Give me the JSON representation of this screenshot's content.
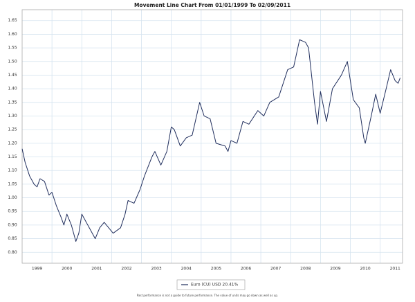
{
  "chart_data": {
    "type": "line",
    "title": "Movement Line Chart From 01/01/1999 To 02/09/2011",
    "footnote": "Past performance is not a guide to future performance. The value of units may go down as well as up.",
    "x": [
      1999.0,
      1999.1,
      1999.25,
      1999.4,
      1999.5,
      1999.6,
      1999.75,
      1999.9,
      2000.0,
      2000.15,
      2000.3,
      2000.4,
      2000.5,
      2000.65,
      2000.8,
      2000.9,
      2001.0,
      2001.1,
      2001.3,
      2001.45,
      2001.6,
      2001.75,
      2001.9,
      2002.05,
      2002.3,
      2002.45,
      2002.55,
      2002.75,
      2002.95,
      2003.1,
      2003.35,
      2003.45,
      2003.65,
      2003.85,
      2004.0,
      2004.1,
      2004.3,
      2004.5,
      2004.7,
      2004.95,
      2005.1,
      2005.3,
      2005.5,
      2005.8,
      2005.9,
      2006.0,
      2006.2,
      2006.4,
      2006.6,
      2006.9,
      2007.1,
      2007.3,
      2007.6,
      2007.9,
      2008.1,
      2008.3,
      2008.5,
      2008.6,
      2008.8,
      2008.9,
      2009.0,
      2009.2,
      2009.4,
      2009.7,
      2009.9,
      2010.1,
      2010.3,
      2010.45,
      2010.5,
      2010.7,
      2010.85,
      2011.0,
      2011.2,
      2011.35,
      2011.5,
      2011.6,
      2011.67
    ],
    "series": [
      {
        "name": "Euro (CU) USD 20.41%",
        "color": "#1f2d5c",
        "values": [
          1.18,
          1.13,
          1.08,
          1.05,
          1.04,
          1.07,
          1.06,
          1.01,
          1.02,
          0.97,
          0.93,
          0.9,
          0.94,
          0.9,
          0.84,
          0.87,
          0.94,
          0.92,
          0.88,
          0.85,
          0.89,
          0.91,
          0.89,
          0.87,
          0.89,
          0.94,
          0.99,
          0.98,
          1.03,
          1.08,
          1.15,
          1.17,
          1.12,
          1.17,
          1.26,
          1.25,
          1.19,
          1.22,
          1.23,
          1.35,
          1.3,
          1.29,
          1.2,
          1.19,
          1.17,
          1.21,
          1.2,
          1.28,
          1.27,
          1.32,
          1.3,
          1.35,
          1.37,
          1.47,
          1.48,
          1.58,
          1.57,
          1.55,
          1.35,
          1.27,
          1.39,
          1.28,
          1.4,
          1.45,
          1.5,
          1.36,
          1.33,
          1.22,
          1.2,
          1.3,
          1.38,
          1.31,
          1.4,
          1.47,
          1.43,
          1.42,
          1.44
        ]
      }
    ],
    "xlim": [
      1999.0,
      2011.75
    ],
    "xticks": [
      1999,
      2000,
      2001,
      2002,
      2003,
      2004,
      2005,
      2006,
      2007,
      2008,
      2009,
      2010,
      2011
    ],
    "ylim": [
      0.76,
      1.69
    ],
    "yticks": [
      {
        "value": 0.8,
        "label": "0.80"
      },
      0.85,
      {
        "value": 0.9,
        "label": "0.90"
      },
      0.95,
      {
        "value": 1.0,
        "label": "1.00"
      },
      1.05,
      {
        "value": 1.1,
        "label": "1.10"
      },
      1.15,
      {
        "value": 1.2,
        "label": "1.20"
      },
      1.25,
      {
        "value": 1.3,
        "label": "1.30"
      },
      1.35,
      {
        "value": 1.4,
        "label": "1.40"
      },
      1.45,
      {
        "value": 1.5,
        "label": "1.50"
      },
      1.55,
      {
        "value": 1.6,
        "label": "1.60"
      },
      1.65
    ],
    "grid": true
  }
}
